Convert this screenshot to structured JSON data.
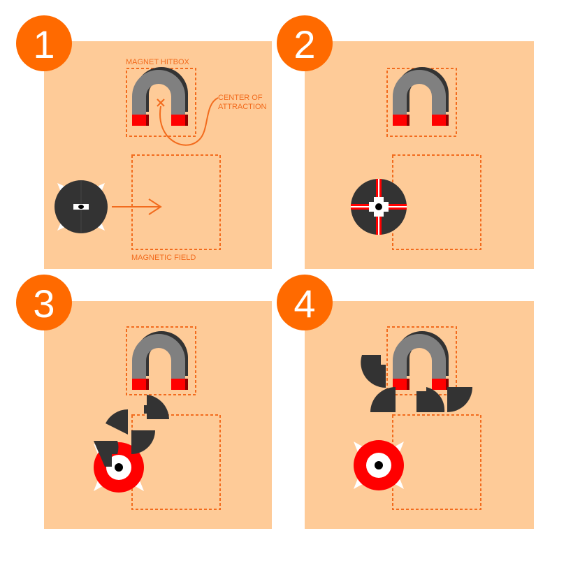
{
  "colors": {
    "panel_bg": "#FECB98",
    "accent": "#FF6A00",
    "dash": "#F26B1D",
    "dark": "#333333",
    "red": "#FF0000",
    "grey": "#808080",
    "white": "#FFFFFF"
  },
  "panels": [
    {
      "number": "1"
    },
    {
      "number": "2"
    },
    {
      "number": "3"
    },
    {
      "number": "4"
    }
  ],
  "labels": {
    "magnet_hitbox": "MAGNET HITBOX",
    "center_line1": "CENTER OF",
    "center_line2": "ATTRACTION",
    "magnetic_field": "MAGNETIC FIELD"
  },
  "icons": [
    "horseshoe-magnet-icon",
    "spiked-mine-icon",
    "arrow-right-icon",
    "center-x-icon"
  ]
}
